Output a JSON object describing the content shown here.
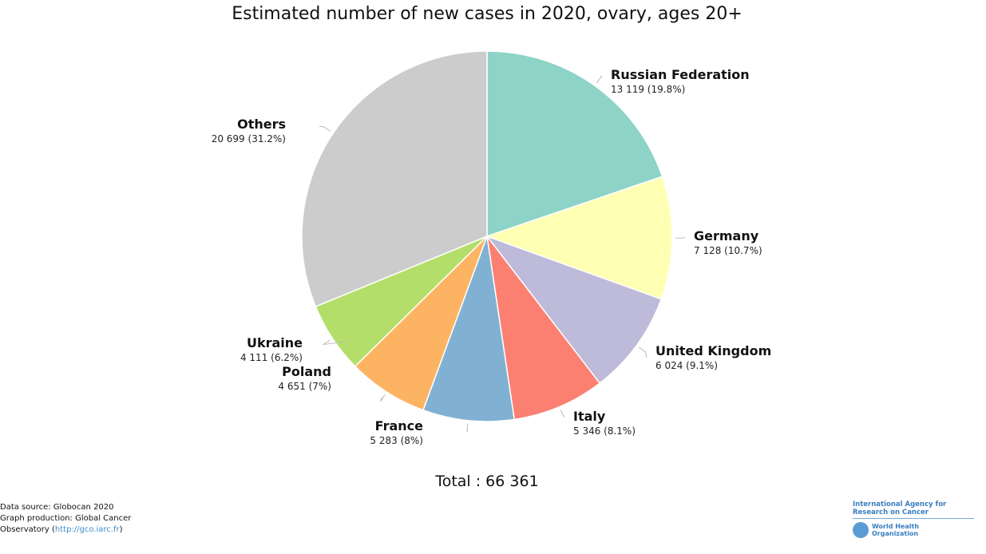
{
  "chart_data": {
    "type": "pie",
    "title": "Estimated number of new cases in 2020, ovary, ages 20+",
    "categories": [
      "Russian Federation",
      "Germany",
      "United Kingdom",
      "Italy",
      "France",
      "Poland",
      "Ukraine",
      "Others"
    ],
    "values": [
      13119,
      7128,
      6024,
      5346,
      5283,
      4651,
      4111,
      20699
    ],
    "value_labels": [
      "13 119 (19.8%)",
      "7 128 (10.7%)",
      "6 024 (9.1%)",
      "5 346 (8.1%)",
      "5 283 (8%)",
      "4 651 (7%)",
      "4 111 (6.2%)",
      "20 699 (31.2%)"
    ],
    "colors": [
      "#8dd3c7",
      "#ffffb3",
      "#bebada",
      "#fb8072",
      "#80b1d3",
      "#fdb462",
      "#b3de69",
      "#cccccc"
    ],
    "total_label": "Total : 66 361"
  },
  "footer": {
    "source": "Data source: Globocan 2020",
    "production": "Graph production: Global Cancer",
    "observatory": "Observatory (",
    "link": "http://gco.iarc.fr",
    "close": ")"
  },
  "logo": {
    "iarc": "International Agency for Research on Cancer",
    "who1": "World Health",
    "who2": "Organization"
  }
}
